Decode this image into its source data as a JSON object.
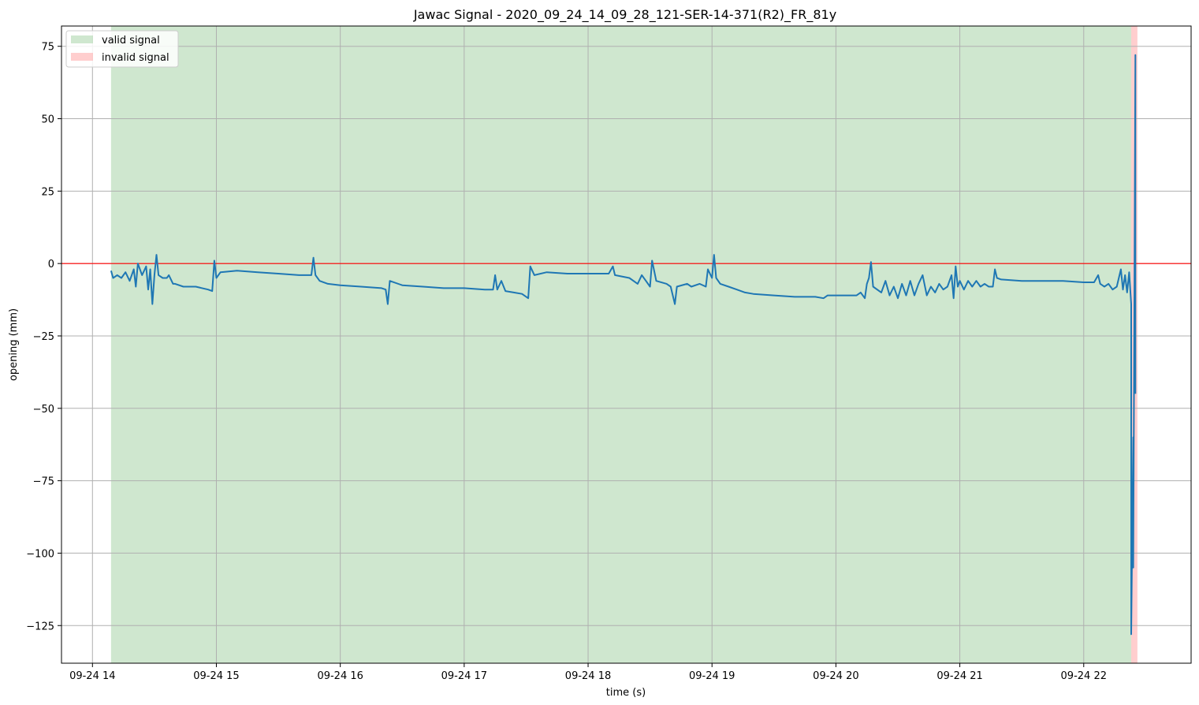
{
  "chart_data": {
    "type": "line",
    "title": "Jawac Signal - 2020_09_24_14_09_28_121-SER-14-371(R2)_FR_81y",
    "xlabel": "time (s)",
    "ylabel": "opening (mm)",
    "xlim": [
      "2020-09-24 13:45",
      "2020-09-24 22:52"
    ],
    "ylim": [
      -138,
      82
    ],
    "grid": true,
    "legend_position": "top-left",
    "x_ticks": [
      {
        "t": "2020-09-24 14:00",
        "label": "09-24 14"
      },
      {
        "t": "2020-09-24 15:00",
        "label": "09-24 15"
      },
      {
        "t": "2020-09-24 16:00",
        "label": "09-24 16"
      },
      {
        "t": "2020-09-24 17:00",
        "label": "09-24 17"
      },
      {
        "t": "2020-09-24 18:00",
        "label": "09-24 18"
      },
      {
        "t": "2020-09-24 19:00",
        "label": "09-24 19"
      },
      {
        "t": "2020-09-24 20:00",
        "label": "09-24 20"
      },
      {
        "t": "2020-09-24 21:00",
        "label": "09-24 21"
      },
      {
        "t": "2020-09-24 22:00",
        "label": "09-24 22"
      }
    ],
    "y_ticks": [
      {
        "v": 75,
        "label": "75"
      },
      {
        "v": 50,
        "label": "50"
      },
      {
        "v": 25,
        "label": "25"
      },
      {
        "v": 0,
        "label": "0"
      },
      {
        "v": -25,
        "label": "−25"
      },
      {
        "v": -50,
        "label": "−50"
      },
      {
        "v": -75,
        "label": "−75"
      },
      {
        "v": -100,
        "label": "−100"
      },
      {
        "v": -125,
        "label": "−125"
      }
    ],
    "reference_line": {
      "y": 0,
      "color": "#ff0000"
    },
    "regions": [
      {
        "name": "valid signal",
        "start": "2020-09-24 14:09",
        "end": "2020-09-24 22:23",
        "color": "#9fd09f",
        "opacity": 0.5
      },
      {
        "name": "invalid signal",
        "start": "2020-09-24 22:23",
        "end": "2020-09-24 22:26",
        "color": "#ff9e9e",
        "opacity": 0.5
      }
    ],
    "series": [
      {
        "color": "#1f77b4",
        "points": [
          [
            "2020-09-24 14:09",
            -2.5
          ],
          [
            "2020-09-24 14:10",
            -5
          ],
          [
            "2020-09-24 14:12",
            -4
          ],
          [
            "2020-09-24 14:14",
            -5
          ],
          [
            "2020-09-24 14:16",
            -3
          ],
          [
            "2020-09-24 14:18",
            -6
          ],
          [
            "2020-09-24 14:20",
            -2
          ],
          [
            "2020-09-24 14:21",
            -8
          ],
          [
            "2020-09-24 14:22",
            0
          ],
          [
            "2020-09-24 14:24",
            -4
          ],
          [
            "2020-09-24 14:26",
            -1
          ],
          [
            "2020-09-24 14:27",
            -9
          ],
          [
            "2020-09-24 14:28",
            -2
          ],
          [
            "2020-09-24 14:29",
            -14
          ],
          [
            "2020-09-24 14:30",
            -4
          ],
          [
            "2020-09-24 14:31",
            3
          ],
          [
            "2020-09-24 14:32",
            -4
          ],
          [
            "2020-09-24 14:34",
            -5
          ],
          [
            "2020-09-24 14:36",
            -5
          ],
          [
            "2020-09-24 14:37",
            -4
          ],
          [
            "2020-09-24 14:39",
            -7
          ],
          [
            "2020-09-24 14:40",
            -7
          ],
          [
            "2020-09-24 14:44",
            -8
          ],
          [
            "2020-09-24 14:50",
            -8
          ],
          [
            "2020-09-24 14:56",
            -9
          ],
          [
            "2020-09-24 14:58",
            -9.5
          ],
          [
            "2020-09-24 14:59",
            1
          ],
          [
            "2020-09-24 15:00",
            -5
          ],
          [
            "2020-09-24 15:02",
            -3
          ],
          [
            "2020-09-24 15:10",
            -2.5
          ],
          [
            "2020-09-24 15:20",
            -3
          ],
          [
            "2020-09-24 15:30",
            -3.5
          ],
          [
            "2020-09-24 15:40",
            -4
          ],
          [
            "2020-09-24 15:46",
            -4
          ],
          [
            "2020-09-24 15:47",
            2
          ],
          [
            "2020-09-24 15:48",
            -4
          ],
          [
            "2020-09-24 15:50",
            -6
          ],
          [
            "2020-09-24 15:54",
            -7
          ],
          [
            "2020-09-24 16:00",
            -7.5
          ],
          [
            "2020-09-24 16:10",
            -8
          ],
          [
            "2020-09-24 16:20",
            -8.5
          ],
          [
            "2020-09-24 16:22",
            -9
          ],
          [
            "2020-09-24 16:23",
            -14
          ],
          [
            "2020-09-24 16:24",
            -6
          ],
          [
            "2020-09-24 16:30",
            -7.5
          ],
          [
            "2020-09-24 16:40",
            -8
          ],
          [
            "2020-09-24 16:50",
            -8.5
          ],
          [
            "2020-09-24 17:00",
            -8.5
          ],
          [
            "2020-09-24 17:10",
            -9
          ],
          [
            "2020-09-24 17:14",
            -9
          ],
          [
            "2020-09-24 17:15",
            -4
          ],
          [
            "2020-09-24 17:16",
            -9
          ],
          [
            "2020-09-24 17:18",
            -6
          ],
          [
            "2020-09-24 17:20",
            -9.5
          ],
          [
            "2020-09-24 17:24",
            -10
          ],
          [
            "2020-09-24 17:28",
            -10.5
          ],
          [
            "2020-09-24 17:31",
            -12
          ],
          [
            "2020-09-24 17:32",
            -1
          ],
          [
            "2020-09-24 17:34",
            -4
          ],
          [
            "2020-09-24 17:40",
            -3
          ],
          [
            "2020-09-24 17:50",
            -3.5
          ],
          [
            "2020-09-24 18:00",
            -3.5
          ],
          [
            "2020-09-24 18:10",
            -3.5
          ],
          [
            "2020-09-24 18:12",
            -1
          ],
          [
            "2020-09-24 18:13",
            -4
          ],
          [
            "2020-09-24 18:20",
            -5
          ],
          [
            "2020-09-24 18:24",
            -7
          ],
          [
            "2020-09-24 18:26",
            -4
          ],
          [
            "2020-09-24 18:28",
            -6
          ],
          [
            "2020-09-24 18:30",
            -8
          ],
          [
            "2020-09-24 18:31",
            1
          ],
          [
            "2020-09-24 18:33",
            -6
          ],
          [
            "2020-09-24 18:38",
            -7
          ],
          [
            "2020-09-24 18:40",
            -8
          ],
          [
            "2020-09-24 18:42",
            -14
          ],
          [
            "2020-09-24 18:43",
            -8
          ],
          [
            "2020-09-24 18:48",
            -7
          ],
          [
            "2020-09-24 18:50",
            -8
          ],
          [
            "2020-09-24 18:54",
            -7
          ],
          [
            "2020-09-24 18:57",
            -8
          ],
          [
            "2020-09-24 18:58",
            -2
          ],
          [
            "2020-09-24 19:00",
            -5
          ],
          [
            "2020-09-24 19:01",
            3
          ],
          [
            "2020-09-24 19:02",
            -5
          ],
          [
            "2020-09-24 19:04",
            -7
          ],
          [
            "2020-09-24 19:08",
            -8
          ],
          [
            "2020-09-24 19:12",
            -9
          ],
          [
            "2020-09-24 19:16",
            -10
          ],
          [
            "2020-09-24 19:20",
            -10.5
          ],
          [
            "2020-09-24 19:30",
            -11
          ],
          [
            "2020-09-24 19:40",
            -11.5
          ],
          [
            "2020-09-24 19:50",
            -11.5
          ],
          [
            "2020-09-24 19:54",
            -12
          ],
          [
            "2020-09-24 19:56",
            -11
          ],
          [
            "2020-09-24 20:00",
            -11
          ],
          [
            "2020-09-24 20:10",
            -11
          ],
          [
            "2020-09-24 20:12",
            -10
          ],
          [
            "2020-09-24 20:14",
            -12
          ],
          [
            "2020-09-24 20:15",
            -7
          ],
          [
            "2020-09-24 20:16",
            -5
          ],
          [
            "2020-09-24 20:17",
            0.5
          ],
          [
            "2020-09-24 20:18",
            -8
          ],
          [
            "2020-09-24 20:22",
            -10
          ],
          [
            "2020-09-24 20:24",
            -6
          ],
          [
            "2020-09-24 20:26",
            -11
          ],
          [
            "2020-09-24 20:28",
            -8
          ],
          [
            "2020-09-24 20:30",
            -12
          ],
          [
            "2020-09-24 20:32",
            -7
          ],
          [
            "2020-09-24 20:34",
            -11
          ],
          [
            "2020-09-24 20:36",
            -6
          ],
          [
            "2020-09-24 20:38",
            -11
          ],
          [
            "2020-09-24 20:40",
            -7
          ],
          [
            "2020-09-24 20:42",
            -4
          ],
          [
            "2020-09-24 20:44",
            -11
          ],
          [
            "2020-09-24 20:46",
            -8
          ],
          [
            "2020-09-24 20:48",
            -10
          ],
          [
            "2020-09-24 20:50",
            -7
          ],
          [
            "2020-09-24 20:52",
            -9
          ],
          [
            "2020-09-24 20:54",
            -8
          ],
          [
            "2020-09-24 20:56",
            -4
          ],
          [
            "2020-09-24 20:57",
            -12
          ],
          [
            "2020-09-24 20:58",
            -1
          ],
          [
            "2020-09-24 20:59",
            -8
          ],
          [
            "2020-09-24 21:00",
            -6
          ],
          [
            "2020-09-24 21:02",
            -9
          ],
          [
            "2020-09-24 21:04",
            -6
          ],
          [
            "2020-09-24 21:06",
            -8
          ],
          [
            "2020-09-24 21:08",
            -6
          ],
          [
            "2020-09-24 21:10",
            -8
          ],
          [
            "2020-09-24 21:12",
            -7
          ],
          [
            "2020-09-24 21:14",
            -8
          ],
          [
            "2020-09-24 21:16",
            -8
          ],
          [
            "2020-09-24 21:17",
            -2
          ],
          [
            "2020-09-24 21:18",
            -5
          ],
          [
            "2020-09-24 21:20",
            -5.5
          ],
          [
            "2020-09-24 21:30",
            -6
          ],
          [
            "2020-09-24 21:40",
            -6
          ],
          [
            "2020-09-24 21:50",
            -6
          ],
          [
            "2020-09-24 22:00",
            -6.5
          ],
          [
            "2020-09-24 22:05",
            -6.5
          ],
          [
            "2020-09-24 22:07",
            -4
          ],
          [
            "2020-09-24 22:08",
            -7
          ],
          [
            "2020-09-24 22:10",
            -8
          ],
          [
            "2020-09-24 22:12",
            -7
          ],
          [
            "2020-09-24 22:14",
            -9
          ],
          [
            "2020-09-24 22:16",
            -8
          ],
          [
            "2020-09-24 22:18",
            -2
          ],
          [
            "2020-09-24 22:19",
            -9
          ],
          [
            "2020-09-24 22:20",
            -4
          ],
          [
            "2020-09-24 22:21",
            -10
          ],
          [
            "2020-09-24 22:22",
            -3
          ],
          [
            "2020-09-24 22:23",
            -14
          ],
          [
            "2020-09-24 22:23",
            -128
          ],
          [
            "2020-09-24 22:24",
            -60
          ],
          [
            "2020-09-24 22:24",
            -105
          ],
          [
            "2020-09-24 22:25",
            72
          ],
          [
            "2020-09-24 22:25",
            -45
          ]
        ]
      }
    ]
  }
}
